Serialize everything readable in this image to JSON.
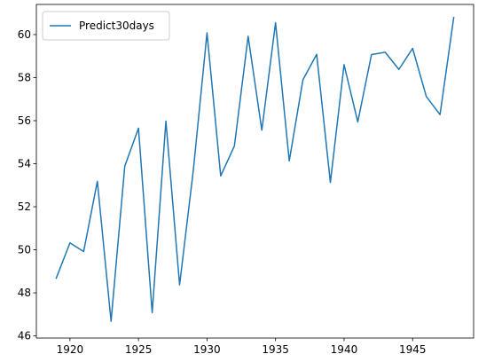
{
  "chart_data": {
    "type": "line",
    "title": "",
    "xlabel": "",
    "ylabel": "",
    "xlim": [
      1917.55,
      1949.45
    ],
    "ylim": [
      45.9,
      61.4
    ],
    "x_ticks": [
      1920,
      1925,
      1930,
      1935,
      1940,
      1945
    ],
    "y_ticks": [
      46,
      48,
      50,
      52,
      54,
      56,
      58,
      60
    ],
    "grid": false,
    "legend": {
      "position": "top-left",
      "entries": [
        "Predict30days"
      ]
    },
    "series": [
      {
        "name": "Predict30days",
        "color": "#1f77b4",
        "x": [
          1919,
          1920,
          1921,
          1922,
          1923,
          1924,
          1925,
          1926,
          1927,
          1928,
          1929,
          1930,
          1931,
          1932,
          1933,
          1934,
          1935,
          1936,
          1937,
          1938,
          1939,
          1940,
          1941,
          1942,
          1943,
          1944,
          1945,
          1946,
          1947,
          1948
        ],
        "y": [
          48.68,
          50.32,
          49.92,
          53.18,
          46.68,
          53.88,
          55.65,
          47.08,
          55.98,
          48.37,
          53.68,
          60.08,
          53.43,
          54.83,
          59.92,
          55.56,
          60.55,
          54.13,
          57.9,
          59.08,
          53.13,
          58.6,
          55.94,
          59.07,
          59.18,
          58.38,
          59.36,
          57.12,
          56.28,
          60.79
        ]
      }
    ]
  }
}
